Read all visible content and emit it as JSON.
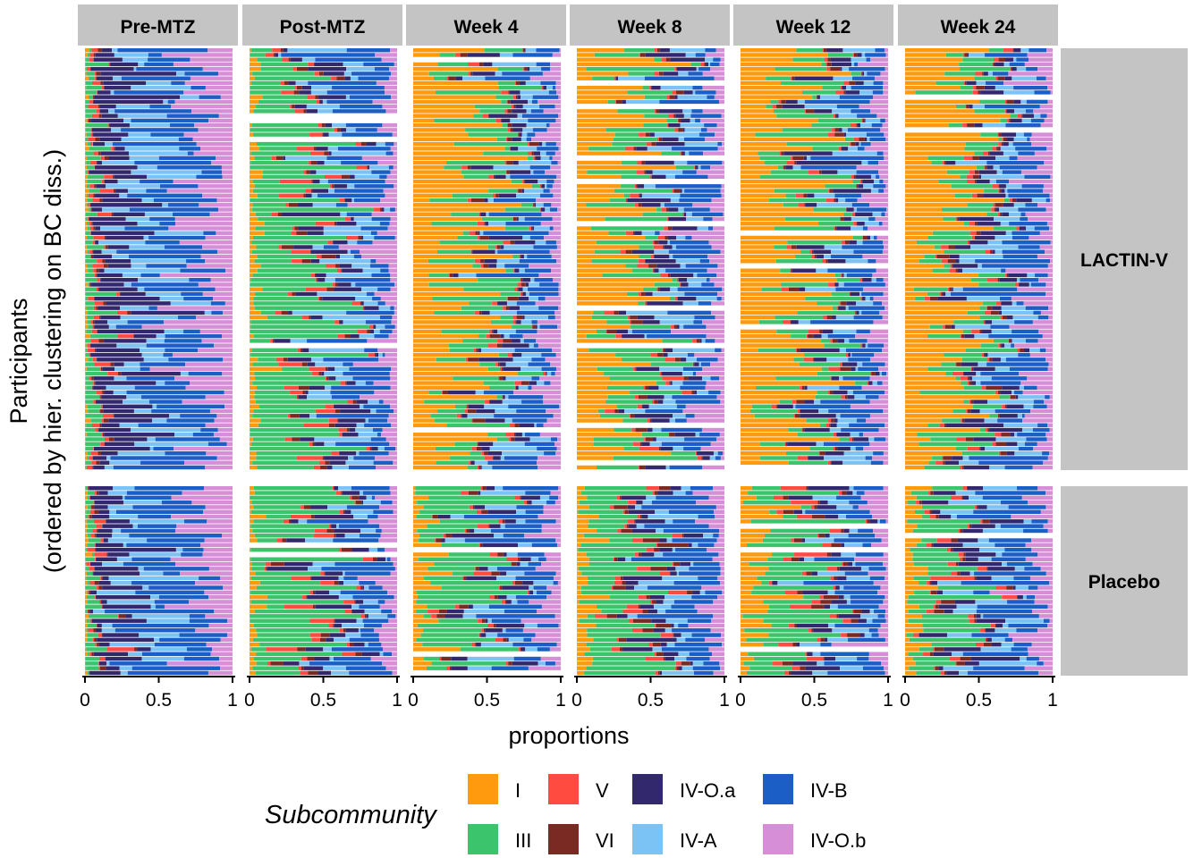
{
  "chart_data": {
    "type": "bar",
    "orientation": "horizontal",
    "stacked": true,
    "title": "",
    "xlabel": "proportions",
    "ylabel_line1": "Participants",
    "ylabel_line2": "(ordered by hier. clustering on BC diss.)",
    "xlim": [
      0,
      1
    ],
    "x_ticks": [
      0,
      0.5,
      1
    ],
    "x_tick_labels": [
      "0",
      "0.5",
      "1"
    ],
    "column_facets": [
      "Pre-MTZ",
      "Post-MTZ",
      "Week 4",
      "Week 8",
      "Week 12",
      "Week 24"
    ],
    "row_facets": [
      "LACTIN-V",
      "Placebo"
    ],
    "legend": {
      "title": "Subcommunity",
      "position": "bottom",
      "entries": [
        {
          "label": "I",
          "color": "#FF9A0E"
        },
        {
          "label": "V",
          "color": "#FF4B40"
        },
        {
          "label": "IV-O.a",
          "color": "#32286E"
        },
        {
          "label": "IV-B",
          "color": "#1B5FC6"
        },
        {
          "label": "III",
          "color": "#3CC46C"
        },
        {
          "label": "VI",
          "color": "#7A2A22"
        },
        {
          "label": "IV-A",
          "color": "#7CC3F5"
        },
        {
          "label": "IV-O.b",
          "color": "#D68FD6"
        }
      ]
    },
    "panel_summary": [
      {
        "row": "LACTIN-V",
        "timepoint": "Pre-MTZ",
        "I": 0.01,
        "III": 0.05,
        "V": 0.02,
        "VI": 0.01,
        "IV-O.a": 0.18,
        "IV-A": 0.17,
        "IV-B": 0.35,
        "IV-O.b": 0.21
      },
      {
        "row": "LACTIN-V",
        "timepoint": "Post-MTZ",
        "I": 0.03,
        "III": 0.45,
        "V": 0.05,
        "VI": 0.02,
        "IV-O.a": 0.09,
        "IV-A": 0.09,
        "IV-B": 0.18,
        "IV-O.b": 0.09
      },
      {
        "row": "LACTIN-V",
        "timepoint": "Week 4",
        "I": 0.4,
        "III": 0.2,
        "V": 0.02,
        "VI": 0.02,
        "IV-O.a": 0.06,
        "IV-A": 0.08,
        "IV-B": 0.14,
        "IV-O.b": 0.08
      },
      {
        "row": "LACTIN-V",
        "timepoint": "Week 8",
        "I": 0.36,
        "III": 0.2,
        "V": 0.02,
        "VI": 0.02,
        "IV-O.a": 0.07,
        "IV-A": 0.09,
        "IV-B": 0.15,
        "IV-O.b": 0.09
      },
      {
        "row": "LACTIN-V",
        "timepoint": "Week 12",
        "I": 0.38,
        "III": 0.2,
        "V": 0.02,
        "VI": 0.02,
        "IV-O.a": 0.07,
        "IV-A": 0.08,
        "IV-B": 0.15,
        "IV-O.b": 0.08
      },
      {
        "row": "LACTIN-V",
        "timepoint": "Week 24",
        "I": 0.34,
        "III": 0.18,
        "V": 0.02,
        "VI": 0.02,
        "IV-O.a": 0.07,
        "IV-A": 0.1,
        "IV-B": 0.17,
        "IV-O.b": 0.1
      },
      {
        "row": "Placebo",
        "timepoint": "Pre-MTZ",
        "I": 0.01,
        "III": 0.06,
        "V": 0.02,
        "VI": 0.01,
        "IV-O.a": 0.17,
        "IV-A": 0.17,
        "IV-B": 0.35,
        "IV-O.b": 0.21
      },
      {
        "row": "Placebo",
        "timepoint": "Post-MTZ",
        "I": 0.03,
        "III": 0.4,
        "V": 0.06,
        "VI": 0.03,
        "IV-O.a": 0.1,
        "IV-A": 0.1,
        "IV-B": 0.19,
        "IV-O.b": 0.09
      },
      {
        "row": "Placebo",
        "timepoint": "Week 4",
        "I": 0.08,
        "III": 0.34,
        "V": 0.03,
        "VI": 0.03,
        "IV-O.a": 0.1,
        "IV-A": 0.11,
        "IV-B": 0.21,
        "IV-O.b": 0.1
      },
      {
        "row": "Placebo",
        "timepoint": "Week 8",
        "I": 0.07,
        "III": 0.3,
        "V": 0.04,
        "VI": 0.04,
        "IV-O.a": 0.11,
        "IV-A": 0.12,
        "IV-B": 0.22,
        "IV-O.b": 0.1
      },
      {
        "row": "Placebo",
        "timepoint": "Week 12",
        "I": 0.12,
        "III": 0.32,
        "V": 0.06,
        "VI": 0.03,
        "IV-O.a": 0.1,
        "IV-A": 0.1,
        "IV-B": 0.18,
        "IV-O.b": 0.09
      },
      {
        "row": "Placebo",
        "timepoint": "Week 24",
        "I": 0.08,
        "III": 0.24,
        "V": 0.04,
        "VI": 0.03,
        "IV-O.a": 0.11,
        "IV-A": 0.14,
        "IV-B": 0.23,
        "IV-O.b": 0.13
      }
    ]
  }
}
